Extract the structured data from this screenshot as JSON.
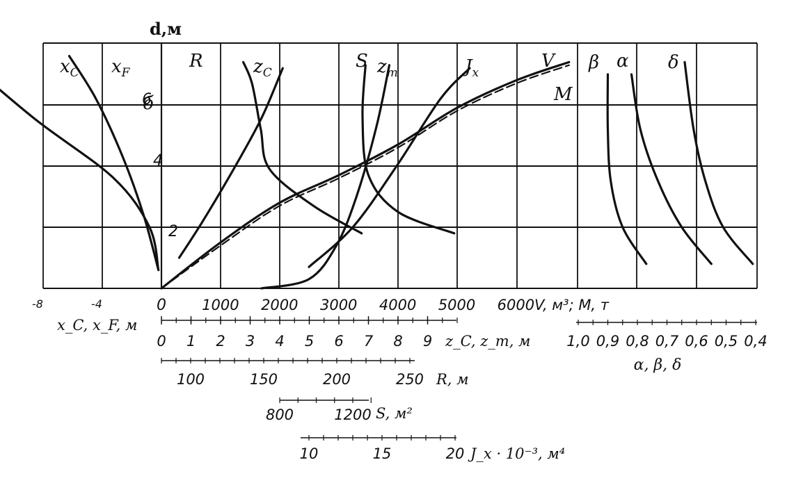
{
  "chart_data": {
    "type": "line",
    "title": "",
    "ylabel": "d,м",
    "y_ticks": [
      "2",
      "4",
      "6"
    ],
    "grid": true,
    "scales": {
      "xc_xf": {
        "label": "x_C, x_F, м",
        "ticks": [
          "-8",
          "-4",
          "0"
        ]
      },
      "v_m": {
        "label": "V, м³; M, т",
        "ticks": [
          "0",
          "1000",
          "2000",
          "3000",
          "4000",
          "5000",
          "6000"
        ]
      },
      "z": {
        "label": "z_C, z_m, м",
        "ticks": [
          "0",
          "1",
          "2",
          "3",
          "4",
          "5",
          "6",
          "7",
          "8",
          "9"
        ]
      },
      "r": {
        "label": "R, м",
        "ticks": [
          "100",
          "150",
          "200",
          "250"
        ]
      },
      "s": {
        "label": "S, м²",
        "ticks": [
          "800",
          "1200"
        ]
      },
      "jx": {
        "label": "J_x · 10⁻³, м⁴",
        "ticks": [
          "10",
          "15",
          "20"
        ]
      },
      "coef": {
        "label": "α, β, δ",
        "ticks": [
          "1,0",
          "0,9",
          "0,8",
          "0,7",
          "0,6",
          "0,5",
          "0,4"
        ]
      }
    },
    "series": [
      {
        "name": "x_C",
        "scale": "xc_xf",
        "points": [
          [
            -0.1,
            0.6
          ],
          [
            -0.4,
            2.0
          ],
          [
            -1.6,
            3.6
          ],
          [
            -4.2,
            5.5
          ],
          [
            -6.4,
            7.3
          ]
        ]
      },
      {
        "name": "x_F",
        "scale": "xc_xf",
        "points": [
          [
            -0.1,
            0.6
          ],
          [
            -0.6,
            2.4
          ],
          [
            -1.3,
            4.3
          ],
          [
            -2.2,
            6.2
          ],
          [
            -3.1,
            7.6
          ]
        ]
      },
      {
        "name": "R",
        "scale": "r",
        "points": [
          [
            217,
            1.8
          ],
          [
            184,
            2.7
          ],
          [
            154,
            3.9
          ],
          [
            148,
            5.2
          ],
          [
            142,
            6.7
          ],
          [
            136,
            7.4
          ]
        ]
      },
      {
        "name": "z_C",
        "scale": "z",
        "points": [
          [
            0.6,
            1.0
          ],
          [
            1.4,
            2.2
          ],
          [
            2.5,
            4.0
          ],
          [
            3.4,
            5.6
          ],
          [
            4.1,
            7.2
          ]
        ]
      },
      {
        "name": "S",
        "scale": "s",
        "points": [
          [
            700,
            0.0
          ],
          [
            960,
            0.3
          ],
          [
            1110,
            1.4
          ],
          [
            1220,
            3.0
          ],
          [
            1330,
            5.3
          ],
          [
            1400,
            7.3
          ]
        ]
      },
      {
        "name": "z_m",
        "scale": "z",
        "points": [
          [
            6.9,
            7.3
          ],
          [
            6.8,
            5.6
          ],
          [
            7.0,
            3.7
          ],
          [
            8.0,
            2.5
          ],
          [
            9.9,
            1.8
          ]
        ]
      },
      {
        "name": "J_x",
        "scale": "jx",
        "points": [
          [
            10,
            0.7
          ],
          [
            13,
            2.0
          ],
          [
            16,
            4.0
          ],
          [
            19,
            6.2
          ],
          [
            21,
            7.2
          ]
        ]
      },
      {
        "name": "V",
        "scale": "v_m",
        "points": [
          [
            0,
            0
          ],
          [
            1000,
            1.5
          ],
          [
            2000,
            2.8
          ],
          [
            3000,
            3.7
          ],
          [
            4000,
            4.7
          ],
          [
            5000,
            5.9
          ],
          [
            6000,
            6.8
          ],
          [
            6900,
            7.4
          ]
        ]
      },
      {
        "name": "M",
        "scale": "v_m",
        "points": [
          [
            0,
            0
          ],
          [
            1000,
            1.4
          ],
          [
            2000,
            2.7
          ],
          [
            3000,
            3.6
          ],
          [
            4000,
            4.6
          ],
          [
            5000,
            5.8
          ],
          [
            6000,
            6.7
          ],
          [
            6900,
            7.3
          ]
        ]
      },
      {
        "name": "β",
        "scale": "coef",
        "points": [
          [
            0.77,
            0.8
          ],
          [
            0.85,
            2.0
          ],
          [
            0.89,
            3.5
          ],
          [
            0.9,
            5.2
          ],
          [
            0.9,
            7.0
          ]
        ]
      },
      {
        "name": "α",
        "scale": "coef",
        "points": [
          [
            0.55,
            0.8
          ],
          [
            0.65,
            2.0
          ],
          [
            0.73,
            3.5
          ],
          [
            0.79,
            5.2
          ],
          [
            0.82,
            7.0
          ]
        ]
      },
      {
        "name": "δ",
        "scale": "coef",
        "points": [
          [
            0.41,
            0.8
          ],
          [
            0.51,
            2.0
          ],
          [
            0.57,
            3.5
          ],
          [
            0.61,
            5.2
          ],
          [
            0.64,
            7.4
          ]
        ]
      }
    ],
    "curve_labels": [
      {
        "text": "x",
        "sub": "C"
      },
      {
        "text": "x",
        "sub": "F"
      },
      {
        "text": "R",
        "sub": ""
      },
      {
        "text": "z",
        "sub": "C"
      },
      {
        "text": "S",
        "sub": ""
      },
      {
        "text": "z",
        "sub": "m"
      },
      {
        "text": "J",
        "sub": "x"
      },
      {
        "text": "V",
        "sub": ""
      },
      {
        "text": "M",
        "sub": ""
      },
      {
        "text": "β",
        "sub": ""
      },
      {
        "text": "α",
        "sub": ""
      },
      {
        "text": "δ",
        "sub": ""
      },
      {
        "text": "б",
        "sub": ""
      }
    ]
  }
}
